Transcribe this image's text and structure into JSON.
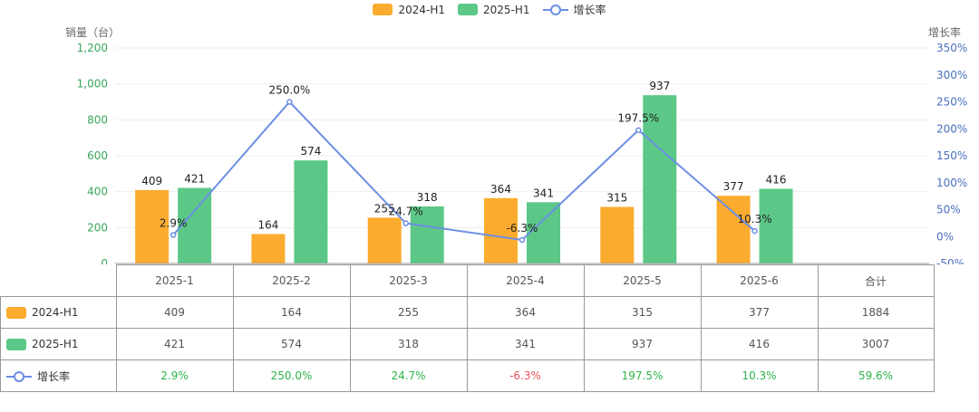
{
  "chart_data": {
    "type": "bar",
    "categories": [
      "2025-1",
      "2025-2",
      "2025-3",
      "2025-4",
      "2025-5",
      "2025-6"
    ],
    "series": [
      {
        "name": "2024-H1",
        "type": "bar",
        "color": "#fbac2e",
        "values": [
          409,
          164,
          255,
          364,
          315,
          377
        ]
      },
      {
        "name": "2025-H1",
        "type": "bar",
        "color": "#5cc887",
        "values": [
          421,
          574,
          318,
          341,
          937,
          416
        ]
      },
      {
        "name": "增长率",
        "type": "line",
        "color": "#6b8fe3",
        "values": [
          2.9,
          250.0,
          24.7,
          -6.3,
          197.5,
          10.3
        ],
        "labels": [
          "2.9%",
          "250.0%",
          "24.7%",
          "-6.3%",
          "197.5%",
          "10.3%"
        ]
      }
    ],
    "ylabel": "销量（台）",
    "y2label": "增长率",
    "ylim": [
      0,
      1200
    ],
    "yticks": [
      0,
      200,
      400,
      600,
      800,
      1000,
      1200
    ],
    "ytick_labels": [
      "0",
      "200",
      "400",
      "600",
      "800",
      "1,000",
      "1,200"
    ],
    "y2lim": [
      -50,
      350
    ],
    "y2ticks": [
      -50,
      0,
      50,
      100,
      150,
      200,
      250,
      300,
      350
    ],
    "y2tick_labels": [
      "-50%",
      "0%",
      "50%",
      "100%",
      "150%",
      "200%",
      "250%",
      "300%",
      "350%"
    ],
    "legend": [
      "2024-H1",
      "2025-H1",
      "增长率"
    ],
    "axis_color": "#3aa55c",
    "axis2_color": "#4a6fbf"
  },
  "table": {
    "header": [
      "2025-1",
      "2025-2",
      "2025-3",
      "2025-4",
      "2025-5",
      "2025-6",
      "合计"
    ],
    "rows": [
      {
        "label": "2024-H1",
        "cells": [
          "409",
          "164",
          "255",
          "364",
          "315",
          "377",
          "1884"
        ]
      },
      {
        "label": "2025-H1",
        "cells": [
          "421",
          "574",
          "318",
          "341",
          "937",
          "416",
          "3007"
        ]
      },
      {
        "label": "增长率",
        "cells": [
          "2.9%",
          "250.0%",
          "24.7%",
          "-6.3%",
          "197.5%",
          "10.3%",
          "59.6%"
        ]
      }
    ]
  }
}
